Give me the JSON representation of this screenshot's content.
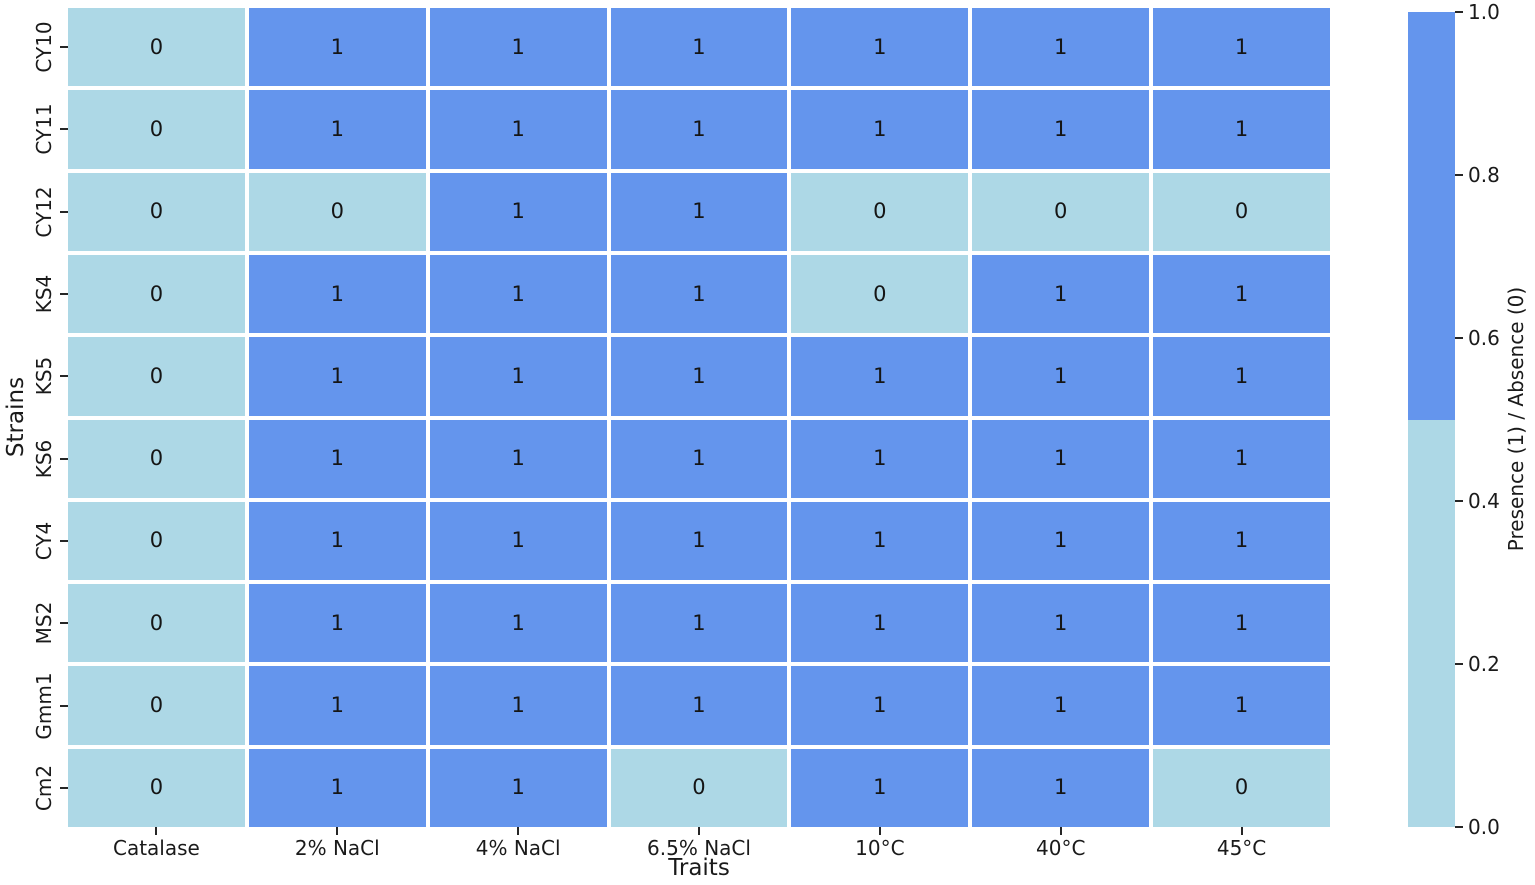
{
  "chart_data": {
    "type": "heatmap",
    "xlabel": "Traits",
    "ylabel": "Strains",
    "categories_x": [
      "Catalase",
      "2% NaCl",
      "4% NaCl",
      "6.5% NaCl",
      "10°C",
      "40°C",
      "45°C"
    ],
    "categories_y": [
      "CY10",
      "CY11",
      "CY12",
      "KS4",
      "KS5",
      "KS6",
      "CY4",
      "MS2",
      "Gmm1",
      "Cm2"
    ],
    "matrix": [
      [
        0,
        1,
        1,
        1,
        1,
        1,
        1
      ],
      [
        0,
        1,
        1,
        1,
        1,
        1,
        1
      ],
      [
        0,
        0,
        1,
        1,
        0,
        0,
        0
      ],
      [
        0,
        1,
        1,
        1,
        0,
        1,
        1
      ],
      [
        0,
        1,
        1,
        1,
        1,
        1,
        1
      ],
      [
        0,
        1,
        1,
        1,
        1,
        1,
        1
      ],
      [
        0,
        1,
        1,
        1,
        1,
        1,
        1
      ],
      [
        0,
        1,
        1,
        1,
        1,
        1,
        1
      ],
      [
        0,
        1,
        1,
        1,
        1,
        1,
        1
      ],
      [
        0,
        1,
        1,
        0,
        1,
        1,
        0
      ]
    ],
    "grid_on": true,
    "legend_position": "right-colorbar",
    "colors": {
      "presence": "#6495ED",
      "absence": "#ADD8E6",
      "grid_line": "#FFFFFF",
      "annotation": "#151515",
      "background": "#FFFFFF"
    },
    "colorbar": {
      "label": "Presence (1) / Absence (0)",
      "min": 0.0,
      "max": 1.0,
      "ticks": [
        "1.0",
        "0.8",
        "0.6",
        "0.4",
        "0.2",
        "0.0"
      ],
      "segments": [
        {
          "from": 0.5,
          "to": 1.0,
          "color": "#6495ED"
        },
        {
          "from": 0.0,
          "to": 0.5,
          "color": "#ADD8E6"
        }
      ]
    }
  }
}
